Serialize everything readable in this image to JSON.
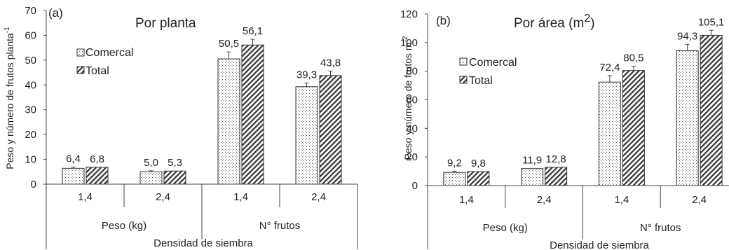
{
  "chart_data": [
    {
      "type": "bar",
      "panel_label": "(a)",
      "title": "Por planta",
      "ylabel": "Peso y número de frutos planta",
      "ylabel_superscript": "-1",
      "ylim": [
        0,
        70
      ],
      "yticks": [
        "0",
        "10",
        "20",
        "30",
        "40",
        "50",
        "60",
        "70"
      ],
      "ytick_values": [
        0,
        10,
        20,
        30,
        40,
        50,
        60,
        70
      ],
      "xlabel": "Densidad de siembra",
      "groups": [
        "Peso (kg)",
        "N° frutos"
      ],
      "categories": [
        "1,4",
        "2,4",
        "1,4",
        "2,4"
      ],
      "series": [
        {
          "name": "Comercal",
          "values": [
            6.4,
            5.0,
            50.5,
            39.3
          ],
          "labels": [
            "6,4",
            "5,0",
            "50,5",
            "39,3"
          ],
          "errors": [
            0.5,
            0.4,
            2.8,
            1.5
          ]
        },
        {
          "name": "Total",
          "values": [
            6.8,
            5.3,
            56.1,
            43.8
          ],
          "labels": [
            "6,8",
            "5,3",
            "56,1",
            "43,8"
          ],
          "errors": [
            0,
            0,
            2.3,
            1.8
          ]
        }
      ],
      "legend_position": "upper-left",
      "grid": false
    },
    {
      "type": "bar",
      "panel_label": "(b)",
      "title": "Por área (m",
      "title_superscript": "2",
      "title_suffix": ")",
      "ylabel": "Peso y número de frutos m",
      "ylabel_superscript": "-2",
      "ylim": [
        0,
        120
      ],
      "yticks": [
        "0",
        "20",
        "40",
        "60",
        "80",
        "100",
        "120"
      ],
      "ytick_values": [
        0,
        20,
        40,
        60,
        80,
        100,
        120
      ],
      "xlabel": "Densidad de siembra",
      "groups": [
        "Peso (kg)",
        "N° frutos"
      ],
      "categories": [
        "1,4",
        "2,4",
        "1,4",
        "2,4"
      ],
      "series": [
        {
          "name": "Comercal",
          "values": [
            9.2,
            11.9,
            72.4,
            94.3
          ],
          "labels": [
            "9,2",
            "11,9",
            "72,4",
            "94,3"
          ],
          "errors": [
            0.8,
            0,
            4.5,
            4.5
          ]
        },
        {
          "name": "Total",
          "values": [
            9.8,
            12.8,
            80.5,
            105.1
          ],
          "labels": [
            "9,8",
            "12,8",
            "80,5",
            "105,1"
          ],
          "errors": [
            0,
            0,
            3.0,
            3.5
          ]
        }
      ],
      "legend_position": "upper-left",
      "grid": false
    }
  ]
}
